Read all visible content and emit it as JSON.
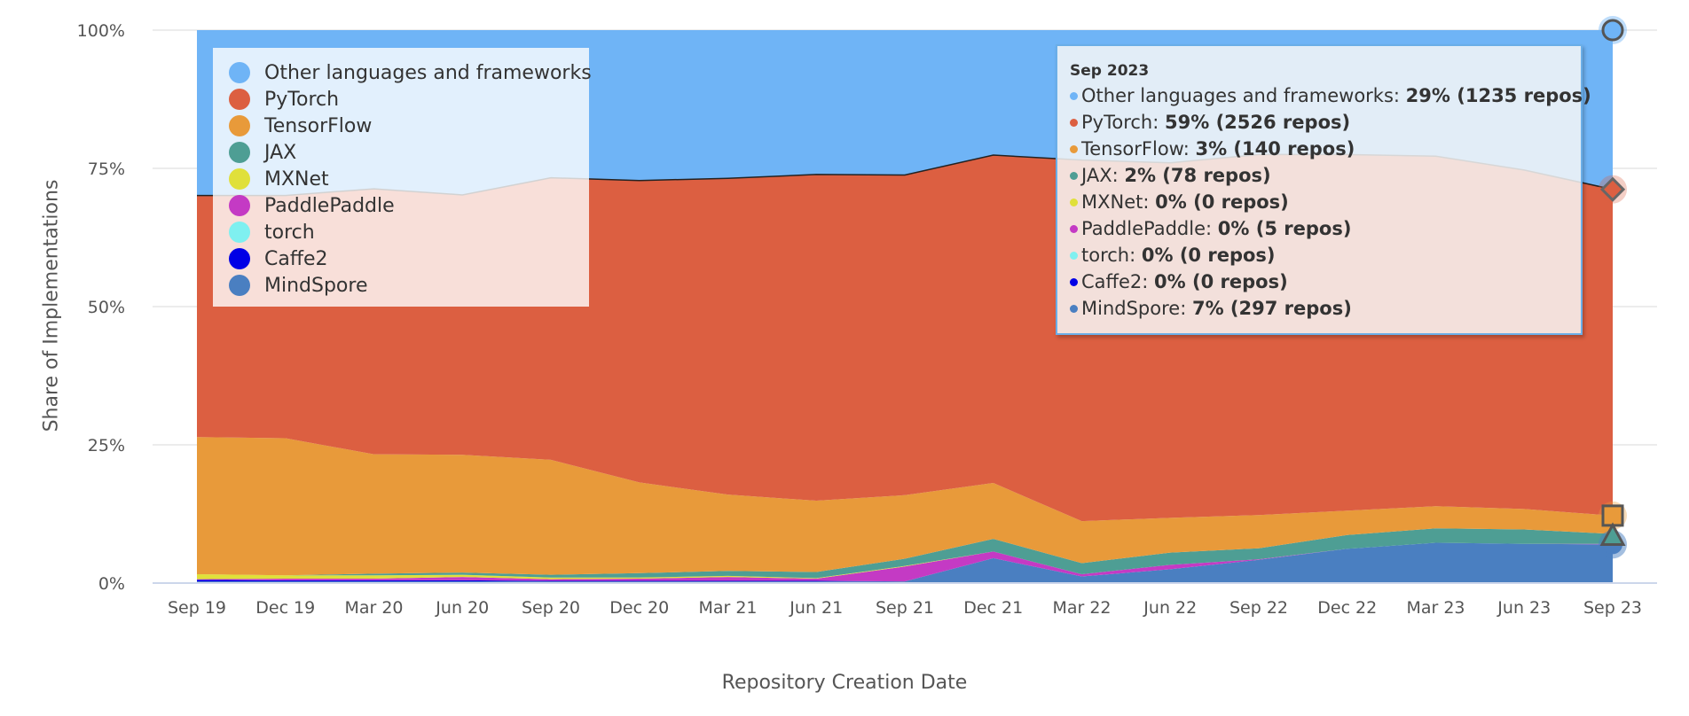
{
  "chart_data": {
    "type": "area",
    "stacking": "percent",
    "x": [
      "Sep 19",
      "Dec 19",
      "Mar 20",
      "Jun 20",
      "Sep 20",
      "Dec 20",
      "Mar 21",
      "Jun 21",
      "Sep 21",
      "Dec 21",
      "Mar 22",
      "Jun 22",
      "Sep 22",
      "Dec 22",
      "Mar 23",
      "Jun 23",
      "Sep 23"
    ],
    "ylim": [
      0,
      100
    ],
    "yticks": [
      "0%",
      "25%",
      "50%",
      "75%",
      "100%"
    ],
    "xlabel": "Repository Creation Date",
    "ylabel": "Share of Implementations",
    "grid": true,
    "legend_position": "top-left",
    "series": [
      {
        "name": "MindSpore",
        "color": "#4a7fc1",
        "values": [
          0.3,
          0.3,
          0.3,
          0.3,
          0.3,
          0.3,
          0.3,
          0.3,
          0.3,
          4.5,
          1.2,
          2.5,
          4.2,
          6.2,
          7.3,
          7.1,
          7.0
        ]
      },
      {
        "name": "Caffe2",
        "color": "#0000e6",
        "values": [
          0.3,
          0.2,
          0.2,
          0.2,
          0.1,
          0.1,
          0.1,
          0.1,
          0,
          0,
          0,
          0,
          0,
          0,
          0,
          0,
          0
        ]
      },
      {
        "name": "torch",
        "color": "#7ff0f0",
        "values": [
          0,
          0,
          0,
          0,
          0,
          0,
          0,
          0,
          0,
          0,
          0,
          0,
          0,
          0,
          0,
          0,
          0
        ]
      },
      {
        "name": "PaddlePaddle",
        "color": "#c43ac4",
        "values": [
          0.1,
          0.3,
          0.3,
          0.6,
          0.3,
          0.4,
          0.7,
          0.4,
          2.7,
          1.2,
          0.4,
          0.8,
          0.1,
          0,
          0,
          0,
          0.1
        ]
      },
      {
        "name": "MXNet",
        "color": "#e0e03a",
        "values": [
          0.9,
          0.6,
          0.6,
          0.4,
          0.3,
          0.2,
          0.2,
          0.1,
          0.1,
          0,
          0,
          0,
          0,
          0,
          0,
          0,
          0
        ]
      },
      {
        "name": "JAX",
        "color": "#4e9e94",
        "values": [
          0,
          0,
          0.3,
          0.4,
          0.5,
          0.8,
          0.9,
          1.1,
          1.3,
          2.3,
          2.0,
          2.2,
          2.0,
          2.5,
          2.6,
          2.6,
          1.8
        ]
      },
      {
        "name": "TensorFlow",
        "color": "#e89a3a",
        "values": [
          24.8,
          24.8,
          21.6,
          21.3,
          20.8,
          16.4,
          13.8,
          12.9,
          11.5,
          10.1,
          7.6,
          6.3,
          6.0,
          4.4,
          4.0,
          3.7,
          3.3
        ]
      },
      {
        "name": "PyTorch",
        "color": "#dc5f41",
        "values": [
          43.7,
          43.9,
          48.0,
          47.0,
          51.0,
          54.6,
          57.2,
          59.0,
          57.9,
          59.3,
          65.3,
          64.2,
          65.2,
          64.4,
          63.3,
          61.3,
          59.0
        ]
      },
      {
        "name": "Other languages and frameworks",
        "color": "#6fb4f6",
        "values": [
          29.9,
          29.9,
          28.7,
          29.8,
          26.7,
          27.2,
          26.8,
          26.1,
          26.2,
          22.6,
          23.5,
          24.0,
          22.5,
          22.5,
          22.8,
          25.3,
          28.8
        ]
      }
    ],
    "tooltip": {
      "header": "Sep 2023",
      "rows": [
        {
          "label": "Other languages and frameworks:",
          "value": "29% (1235 repos)",
          "color": "#6fb4f6"
        },
        {
          "label": "PyTorch:",
          "value": "59% (2526 repos)",
          "color": "#dc5f41"
        },
        {
          "label": "TensorFlow:",
          "value": "3% (140 repos)",
          "color": "#e89a3a"
        },
        {
          "label": "JAX:",
          "value": "2% (78 repos)",
          "color": "#4e9e94"
        },
        {
          "label": "MXNet:",
          "value": "0% (0 repos)",
          "color": "#e0e03a"
        },
        {
          "label": "PaddlePaddle:",
          "value": "0% (5 repos)",
          "color": "#c43ac4"
        },
        {
          "label": "torch:",
          "value": "0% (0 repos)",
          "color": "#7ff0f0"
        },
        {
          "label": "Caffe2:",
          "value": "0% (0 repos)",
          "color": "#0000e6"
        },
        {
          "label": "MindSpore:",
          "value": "7% (297 repos)",
          "color": "#4a7fc1"
        }
      ]
    }
  },
  "legend": {
    "items": [
      {
        "label": "Other languages and frameworks",
        "color": "#6fb4f6"
      },
      {
        "label": "PyTorch",
        "color": "#dc5f41"
      },
      {
        "label": "TensorFlow",
        "color": "#e89a3a"
      },
      {
        "label": "JAX",
        "color": "#4e9e94"
      },
      {
        "label": "MXNet",
        "color": "#e0e03a"
      },
      {
        "label": "PaddlePaddle",
        "color": "#c43ac4"
      },
      {
        "label": "torch",
        "color": "#7ff0f0"
      },
      {
        "label": "Caffe2",
        "color": "#0000e6"
      },
      {
        "label": "MindSpore",
        "color": "#4a7fc1"
      }
    ]
  }
}
